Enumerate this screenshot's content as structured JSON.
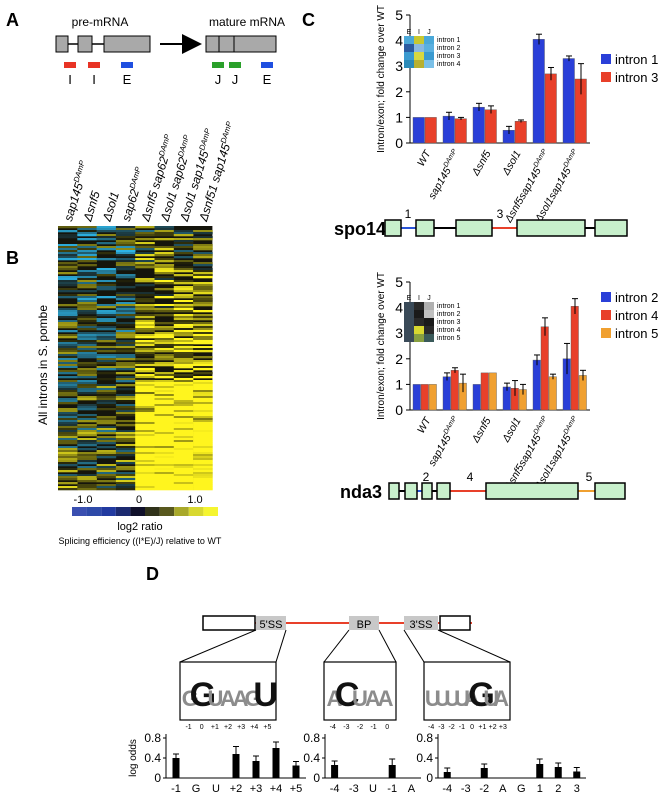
{
  "panels": {
    "a": "A",
    "b": "B",
    "c": "C",
    "d": "D"
  },
  "panel_a": {
    "pre_title": "pre-mRNA",
    "mature_title": "mature mRNA",
    "probe_labels_pre": [
      "I",
      "I",
      "E"
    ],
    "probe_labels_mature": [
      "J",
      "J",
      "E"
    ],
    "colors": {
      "intron_probe": "#e83325",
      "exon_probe": "#1f4fe0",
      "junction_probe": "#2aa02a"
    }
  },
  "panel_b": {
    "ylabel": "All introns in S. pombe",
    "columns": [
      {
        "main": "sap145",
        "sup": "DAmP"
      },
      {
        "main": "Δsnf5",
        "sup": ""
      },
      {
        "main": "Δsol1",
        "sup": ""
      },
      {
        "main": "sap62",
        "sup": "DAmP"
      },
      {
        "main": "Δsnf5 sap62",
        "sup": "DAmP"
      },
      {
        "main": "Δsol1 sap62",
        "sup": "DAmP"
      },
      {
        "main": "Δsol1 sap145",
        "sup": "DAmP"
      },
      {
        "main": "Δsnf51 sap145",
        "sup": "DAmP"
      }
    ],
    "scale_ticks": [
      "-1.0",
      "0",
      "1.0"
    ],
    "scale_label": "log2 ratio",
    "caption": "Splicing efficiency ((I*E)/J) relative to WT"
  },
  "chart_data": [
    {
      "type": "bar",
      "id": "spo14",
      "ylabel": "Intron/exon; fold change over WT",
      "ylim": [
        0,
        5
      ],
      "yticks": [
        "0",
        "1",
        "2",
        "3",
        "4",
        "5"
      ],
      "categories": [
        {
          "main": "WT",
          "sup": ""
        },
        {
          "main": "sap145",
          "sup": "DAmP"
        },
        {
          "main": "Δsnf5",
          "sup": ""
        },
        {
          "main": "Δsol1",
          "sup": ""
        },
        {
          "main": "Δsnf5sap145",
          "sup": "DAmP"
        },
        {
          "main": "Δsol1sap145",
          "sup": "DAmP"
        }
      ],
      "series": [
        {
          "name": "intron 1",
          "color": "#2a3fd8",
          "values": [
            1,
            1.05,
            1.4,
            0.5,
            4.05,
            3.3
          ],
          "errors": [
            0,
            0.15,
            0.15,
            0.15,
            0.2,
            0.1
          ]
        },
        {
          "name": "intron 3",
          "color": "#e8402a",
          "values": [
            1,
            0.95,
            1.3,
            0.85,
            2.7,
            2.5
          ],
          "errors": [
            0,
            0.05,
            0.15,
            0.05,
            0.25,
            0.6
          ]
        }
      ],
      "inset_labels": {
        "cols": [
          "E",
          "I",
          "J"
        ],
        "rows": [
          "intron 1",
          "intron 2",
          "intron 3",
          "intron 4"
        ]
      },
      "gene": "spo14",
      "gene_intron_numbers": [
        "1",
        "3"
      ]
    },
    {
      "type": "bar",
      "id": "nda3",
      "ylabel": "Intron/exon; fold change over WT",
      "ylim": [
        0,
        5
      ],
      "yticks": [
        "0",
        "1",
        "2",
        "3",
        "4",
        "5"
      ],
      "categories": [
        {
          "main": "WT",
          "sup": ""
        },
        {
          "main": "sap145",
          "sup": "DAmP"
        },
        {
          "main": "Δsnf5",
          "sup": ""
        },
        {
          "main": "Δsol1",
          "sup": ""
        },
        {
          "main": "Δsnf5sap145",
          "sup": "DAmP"
        },
        {
          "main": "Δsol1sap145",
          "sup": "DAmP"
        }
      ],
      "series": [
        {
          "name": "intron 2",
          "color": "#2a3fd8",
          "values": [
            1,
            1.3,
            1.0,
            0.9,
            1.95,
            2.0
          ],
          "errors": [
            0,
            0.15,
            0,
            0.15,
            0.2,
            0.6
          ]
        },
        {
          "name": "intron 4",
          "color": "#e8402a",
          "values": [
            1,
            1.55,
            1.45,
            0.85,
            3.25,
            4.05
          ],
          "errors": [
            0,
            0.1,
            0,
            0.3,
            0.35,
            0.3
          ]
        },
        {
          "name": "intron 5",
          "color": "#f0a030",
          "values": [
            1,
            1.05,
            1.45,
            0.8,
            1.3,
            1.35
          ],
          "errors": [
            0,
            0.35,
            0,
            0.2,
            0.1,
            0.2
          ]
        }
      ],
      "inset_labels": {
        "cols": [
          "E",
          "I",
          "J"
        ],
        "rows": [
          "intron 1",
          "intron 2",
          "intron 3",
          "intron 4",
          "intron 5"
        ]
      },
      "gene": "nda3",
      "gene_intron_numbers": [
        "2",
        "4",
        "5"
      ]
    },
    {
      "type": "bar",
      "id": "d-5ss",
      "ylabel": "log odds",
      "ylim": [
        0,
        0.8
      ],
      "yticks": [
        "0",
        "0.4",
        "0.8"
      ],
      "categories": [
        "-1",
        "G",
        "U",
        "+2",
        "+3",
        "+4",
        "+5"
      ],
      "values": [
        0.4,
        0,
        0,
        0.48,
        0.34,
        0.6,
        0.25
      ],
      "errors": [
        0.08,
        0,
        0,
        0.15,
        0.1,
        0.12,
        0.08
      ]
    },
    {
      "type": "bar",
      "id": "d-bp",
      "ylabel": "",
      "ylim": [
        0,
        0.8
      ],
      "yticks": [
        "0",
        "0.4",
        "0.8"
      ],
      "categories": [
        "-4",
        "-3",
        "U",
        "-1",
        "A"
      ],
      "values": [
        0.26,
        0,
        0,
        0.26,
        0
      ],
      "errors": [
        0.08,
        0,
        0,
        0.12,
        0
      ]
    },
    {
      "type": "bar",
      "id": "d-3ss",
      "ylabel": "",
      "ylim": [
        0,
        0.8
      ],
      "yticks": [
        "0",
        "0.4",
        "0.8"
      ],
      "categories": [
        "-4",
        "-3",
        "-2",
        "A",
        "G",
        "1",
        "2",
        "3"
      ],
      "values": [
        0.12,
        0,
        0.2,
        0,
        0,
        0.28,
        0.22,
        0.13
      ],
      "errors": [
        0.08,
        0,
        0.08,
        0,
        0,
        0.1,
        0.08,
        0.08
      ]
    }
  ],
  "panel_d": {
    "site_labels": [
      "5'SS",
      "BP",
      "3'SS"
    ],
    "logo_5ss_axis": [
      "-1",
      "0",
      "+1",
      "+2",
      "+3",
      "+4",
      "+5"
    ],
    "logo_bp_axis": [
      "-4",
      "-3",
      "-2",
      "-1",
      "0"
    ],
    "logo_3ss_axis": [
      "-4",
      "-3",
      "-2",
      "-1",
      "0",
      "+1",
      "+2",
      "+3"
    ],
    "logo_5ss": [
      "G",
      "G",
      "U",
      "A",
      "A",
      "G",
      "U"
    ],
    "logo_bp": [
      "A",
      "C",
      "U",
      "A",
      "A"
    ],
    "logo_3ss": [
      "U",
      "U",
      "U",
      "U",
      "A",
      "G",
      "U",
      "A"
    ]
  }
}
